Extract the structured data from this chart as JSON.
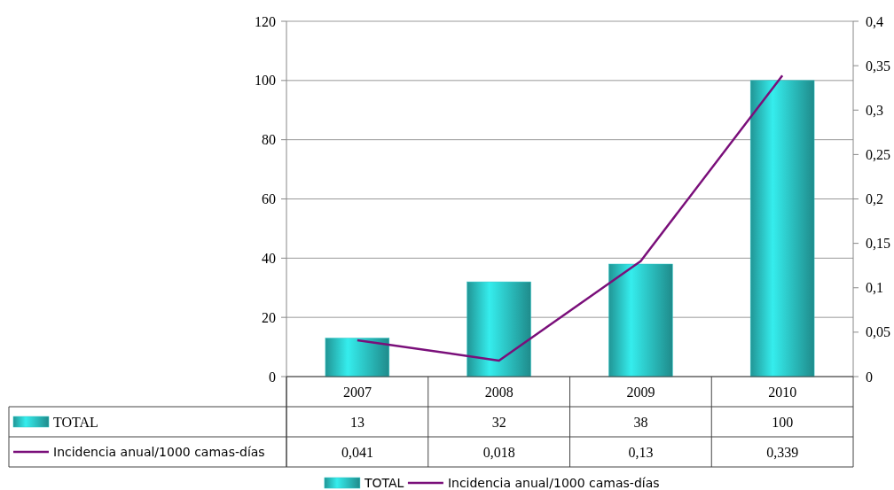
{
  "chart_data": {
    "type": "bar",
    "categories": [
      "2007",
      "2008",
      "2009",
      "2010"
    ],
    "series": [
      {
        "name": "TOTAL",
        "color": "#2cc6c6",
        "values": [
          13,
          32,
          38,
          100
        ],
        "value_labels": [
          "13",
          "32",
          "38",
          "100"
        ]
      },
      {
        "name": "Incidencia anual/1000 camas-días",
        "type": "line",
        "axis": "y2",
        "color": "#7a0f7a",
        "values": [
          0.041,
          0.018,
          0.13,
          0.339
        ],
        "value_labels": [
          "0,041",
          "0,018",
          "0,13",
          "0,339"
        ]
      }
    ],
    "ylim": [
      0,
      120
    ],
    "yticks": [
      0,
      20,
      40,
      60,
      80,
      100,
      120
    ],
    "y2lim": [
      0,
      0.4
    ],
    "y2ticks": [
      {
        "value": 0,
        "label": "0"
      },
      {
        "value": 0.05,
        "label": "0,05"
      },
      {
        "value": 0.1,
        "label": "0,1"
      },
      {
        "value": 0.15,
        "label": "0,15"
      },
      {
        "value": 0.2,
        "label": "0,2"
      },
      {
        "value": 0.25,
        "label": "0,25"
      },
      {
        "value": 0.3,
        "label": "0,3"
      },
      {
        "value": 0.35,
        "label": "0,35"
      },
      {
        "value": 0.4,
        "label": "0,4"
      }
    ],
    "grid": "y",
    "legend": "bottom",
    "marker": "none"
  }
}
